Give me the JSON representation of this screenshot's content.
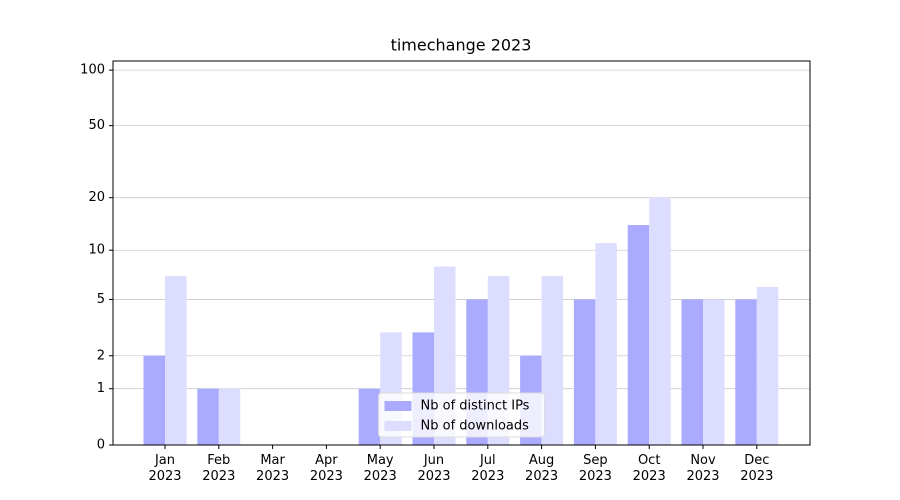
{
  "chart_data": {
    "type": "bar",
    "title": "timechange 2023",
    "categories": [
      "Jan 2023",
      "Feb 2023",
      "Mar 2023",
      "Apr 2023",
      "May 2023",
      "Jun 2023",
      "Jul 2023",
      "Aug 2023",
      "Sep 2023",
      "Oct 2023",
      "Nov 2023",
      "Dec 2023"
    ],
    "series": [
      {
        "name": "Nb of distinct IPs",
        "color": "#aaaaff",
        "values": [
          2,
          1,
          0,
          0,
          1,
          3,
          5,
          2,
          5,
          14,
          5,
          5
        ]
      },
      {
        "name": "Nb of downloads",
        "color": "#ddddff",
        "values": [
          7,
          1,
          0,
          0,
          3,
          8,
          7,
          7,
          11,
          20,
          5,
          6
        ]
      }
    ],
    "yscale": "log1p",
    "ylim": [
      0,
      112
    ],
    "yticks": [
      0,
      1,
      2,
      5,
      10,
      20,
      50,
      100
    ],
    "grid": true,
    "legend": "lower center"
  }
}
